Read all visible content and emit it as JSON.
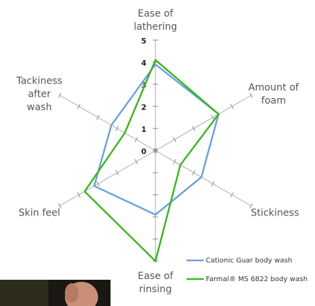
{
  "chart_data": {
    "type": "radar",
    "categories": [
      "Ease of lathering",
      "Amount of foam",
      "Stickiness",
      "Ease of rinsing",
      "Skin feel",
      "Tackiness after wash"
    ],
    "series": [
      {
        "name": "Cationic Guar body wash",
        "color": "#6fa0d8",
        "values": [
          3.9,
          3.3,
          2.4,
          2.9,
          3.2,
          2.3
        ]
      },
      {
        "name": "Farmal® MS 6822 body wash",
        "color": "#3cb520",
        "values": [
          4.1,
          3.3,
          1.3,
          5.0,
          3.7,
          1.6
        ]
      }
    ],
    "ylim": [
      0,
      5
    ],
    "yticks": [
      0,
      1,
      2,
      3,
      4,
      5
    ]
  }
}
